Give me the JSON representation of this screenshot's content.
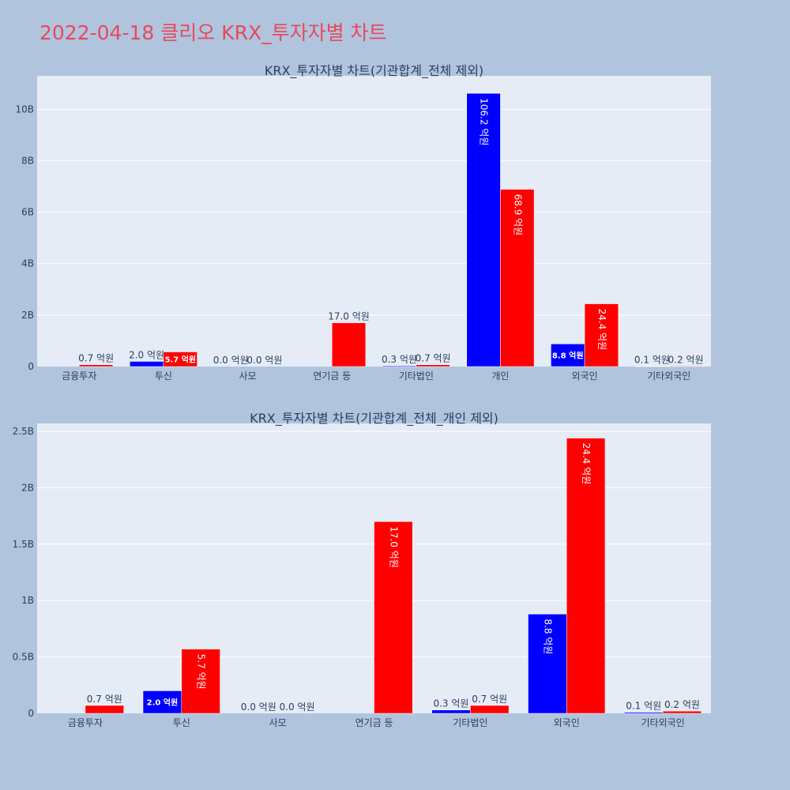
{
  "page_title": "2022-04-18 클리오 KRX_투자자별 차트",
  "colors": {
    "background": "#b0c4de",
    "plot_background": "#e5ecf6",
    "title": "#e8495b",
    "text": "#2a3f5f",
    "series_blue": "#0000ff",
    "series_red": "#ff0000"
  },
  "chart_data": [
    {
      "type": "bar",
      "title": "KRX_투자자별 차트(기관합계_전체 제외)",
      "categories": [
        "금융투자",
        "투신",
        "사모",
        "연기금 등",
        "기타법인",
        "개인",
        "외국인",
        "기타외국인"
      ],
      "y_ticks": [
        "0",
        "2B",
        "4B",
        "6B",
        "8B",
        "10B"
      ],
      "y_tick_values": [
        0,
        2000000000,
        4000000000,
        6000000000,
        8000000000,
        10000000000
      ],
      "ylim": [
        0,
        11300000000
      ],
      "grid": true,
      "series": [
        {
          "color": "#0000ff",
          "values": [
            0,
            200000000,
            0,
            0,
            30000000,
            10620000000,
            880000000,
            10000000
          ],
          "labels": [
            "",
            "2.0 억원",
            "0.0 억원",
            "",
            "0.3 억원",
            "106.2 억원",
            "8.8 억원",
            "0.1 억원"
          ]
        },
        {
          "color": "#ff0000",
          "values": [
            70000000,
            570000000,
            0,
            1700000000,
            70000000,
            6890000000,
            2440000000,
            20000000
          ],
          "labels": [
            "0.7 억원",
            "5.7 억원",
            "0.0 억원",
            "17.0 억원",
            "0.7 억원",
            "68.9 억원",
            "24.4 억원",
            "0.2 억원"
          ]
        }
      ]
    },
    {
      "type": "bar",
      "title": "KRX_투자자별 차트(기관합계_전체_개인 제외)",
      "categories": [
        "금융투자",
        "투신",
        "사모",
        "연기금 등",
        "기타법인",
        "외국인",
        "기타외국인"
      ],
      "y_ticks": [
        "0",
        "0.5B",
        "1B",
        "1.5B",
        "2B",
        "2.5B"
      ],
      "y_tick_values": [
        0,
        500000000,
        1000000000,
        1500000000,
        2000000000,
        2500000000
      ],
      "ylim": [
        0,
        2570000000
      ],
      "grid": true,
      "series": [
        {
          "color": "#0000ff",
          "values": [
            0,
            200000000,
            0,
            0,
            30000000,
            880000000,
            10000000
          ],
          "labels": [
            "",
            "2.0 억원",
            "0.0 억원",
            "",
            "0.3 억원",
            "8.8 억원",
            "0.1 억원"
          ]
        },
        {
          "color": "#ff0000",
          "values": [
            70000000,
            570000000,
            0,
            1700000000,
            70000000,
            2440000000,
            20000000
          ],
          "labels": [
            "0.7 억원",
            "5.7 억원",
            "0.0 억원",
            "17.0 억원",
            "0.7 억원",
            "24.4 억원",
            "0.2 억원"
          ]
        }
      ]
    }
  ]
}
